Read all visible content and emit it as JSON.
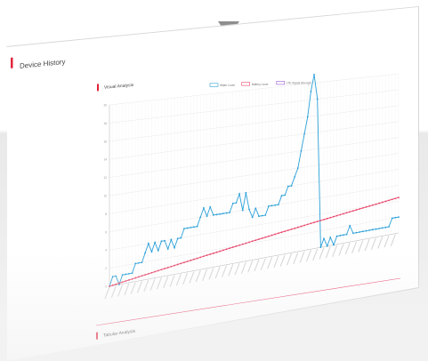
{
  "page": {
    "title": "Device History",
    "section_visual": "Visual Analysis",
    "section_tabular": "Tabular Analysis",
    "accent_color": "#e0243a"
  },
  "chart_data": {
    "type": "line",
    "title": "",
    "xlabel": "",
    "ylabel": "",
    "ylim": [
      0,
      20
    ],
    "y_ticks": [
      0,
      2,
      4,
      6,
      8,
      10,
      12,
      14,
      16,
      18,
      20
    ],
    "legend_position": "top-center",
    "grid": true,
    "series": [
      {
        "name": "Water Level",
        "color": "#2a9fd8",
        "values": [
          0,
          1,
          1,
          0,
          1,
          1,
          1,
          1,
          2,
          2,
          2,
          3,
          4,
          3,
          4,
          3,
          4,
          4,
          3,
          4,
          3,
          4,
          4,
          5,
          5,
          5,
          5,
          5,
          6,
          7,
          6,
          7,
          6,
          6,
          6,
          6,
          6,
          6,
          7,
          7,
          8,
          6,
          8,
          6,
          5,
          6,
          5,
          5,
          5,
          6,
          6,
          6,
          6,
          7,
          7,
          8,
          8,
          9,
          10,
          12,
          14,
          16,
          19,
          21,
          18,
          0,
          1,
          0,
          1,
          0,
          1,
          1,
          1,
          1,
          2,
          1,
          1,
          1,
          1,
          1,
          1,
          1,
          1,
          1,
          1,
          1,
          1,
          2,
          2,
          2
        ]
      },
      {
        "name": "Battery Level",
        "color": "#e8446a",
        "values": [
          0,
          0.05,
          0.1,
          0.15,
          0.2,
          0.25,
          0.3,
          0.35,
          0.4,
          0.45,
          0.5,
          0.55,
          0.6,
          0.65,
          0.7,
          0.75,
          0.8,
          0.85,
          0.9,
          0.95,
          1,
          1.05,
          1.1,
          1.15,
          1.2,
          1.25,
          1.3,
          1.35,
          1.4,
          1.45,
          1.5,
          1.55,
          1.6,
          1.65,
          1.7,
          1.75,
          1.8,
          1.85,
          1.9,
          1.95,
          2,
          2.05,
          2.1,
          2.15,
          2.2,
          2.25,
          2.3,
          2.35,
          2.4,
          2.45,
          2.5,
          2.55,
          2.6,
          2.65,
          2.7,
          2.75,
          2.8,
          2.85,
          2.9,
          2.95,
          3,
          3.05,
          3.1,
          3.15,
          3.2,
          3.25,
          3.3,
          3.35,
          3.4,
          3.45,
          3.5,
          3.55,
          3.6,
          3.65,
          3.7,
          3.75,
          3.8,
          3.85,
          3.9,
          3.95,
          4,
          4.05,
          4.1,
          4.15,
          4.2,
          4.25,
          4.3,
          4.35,
          4.4,
          4.45
        ]
      },
      {
        "name": "LTE Signal Strength",
        "color": "#9b59d0",
        "values": []
      }
    ]
  }
}
